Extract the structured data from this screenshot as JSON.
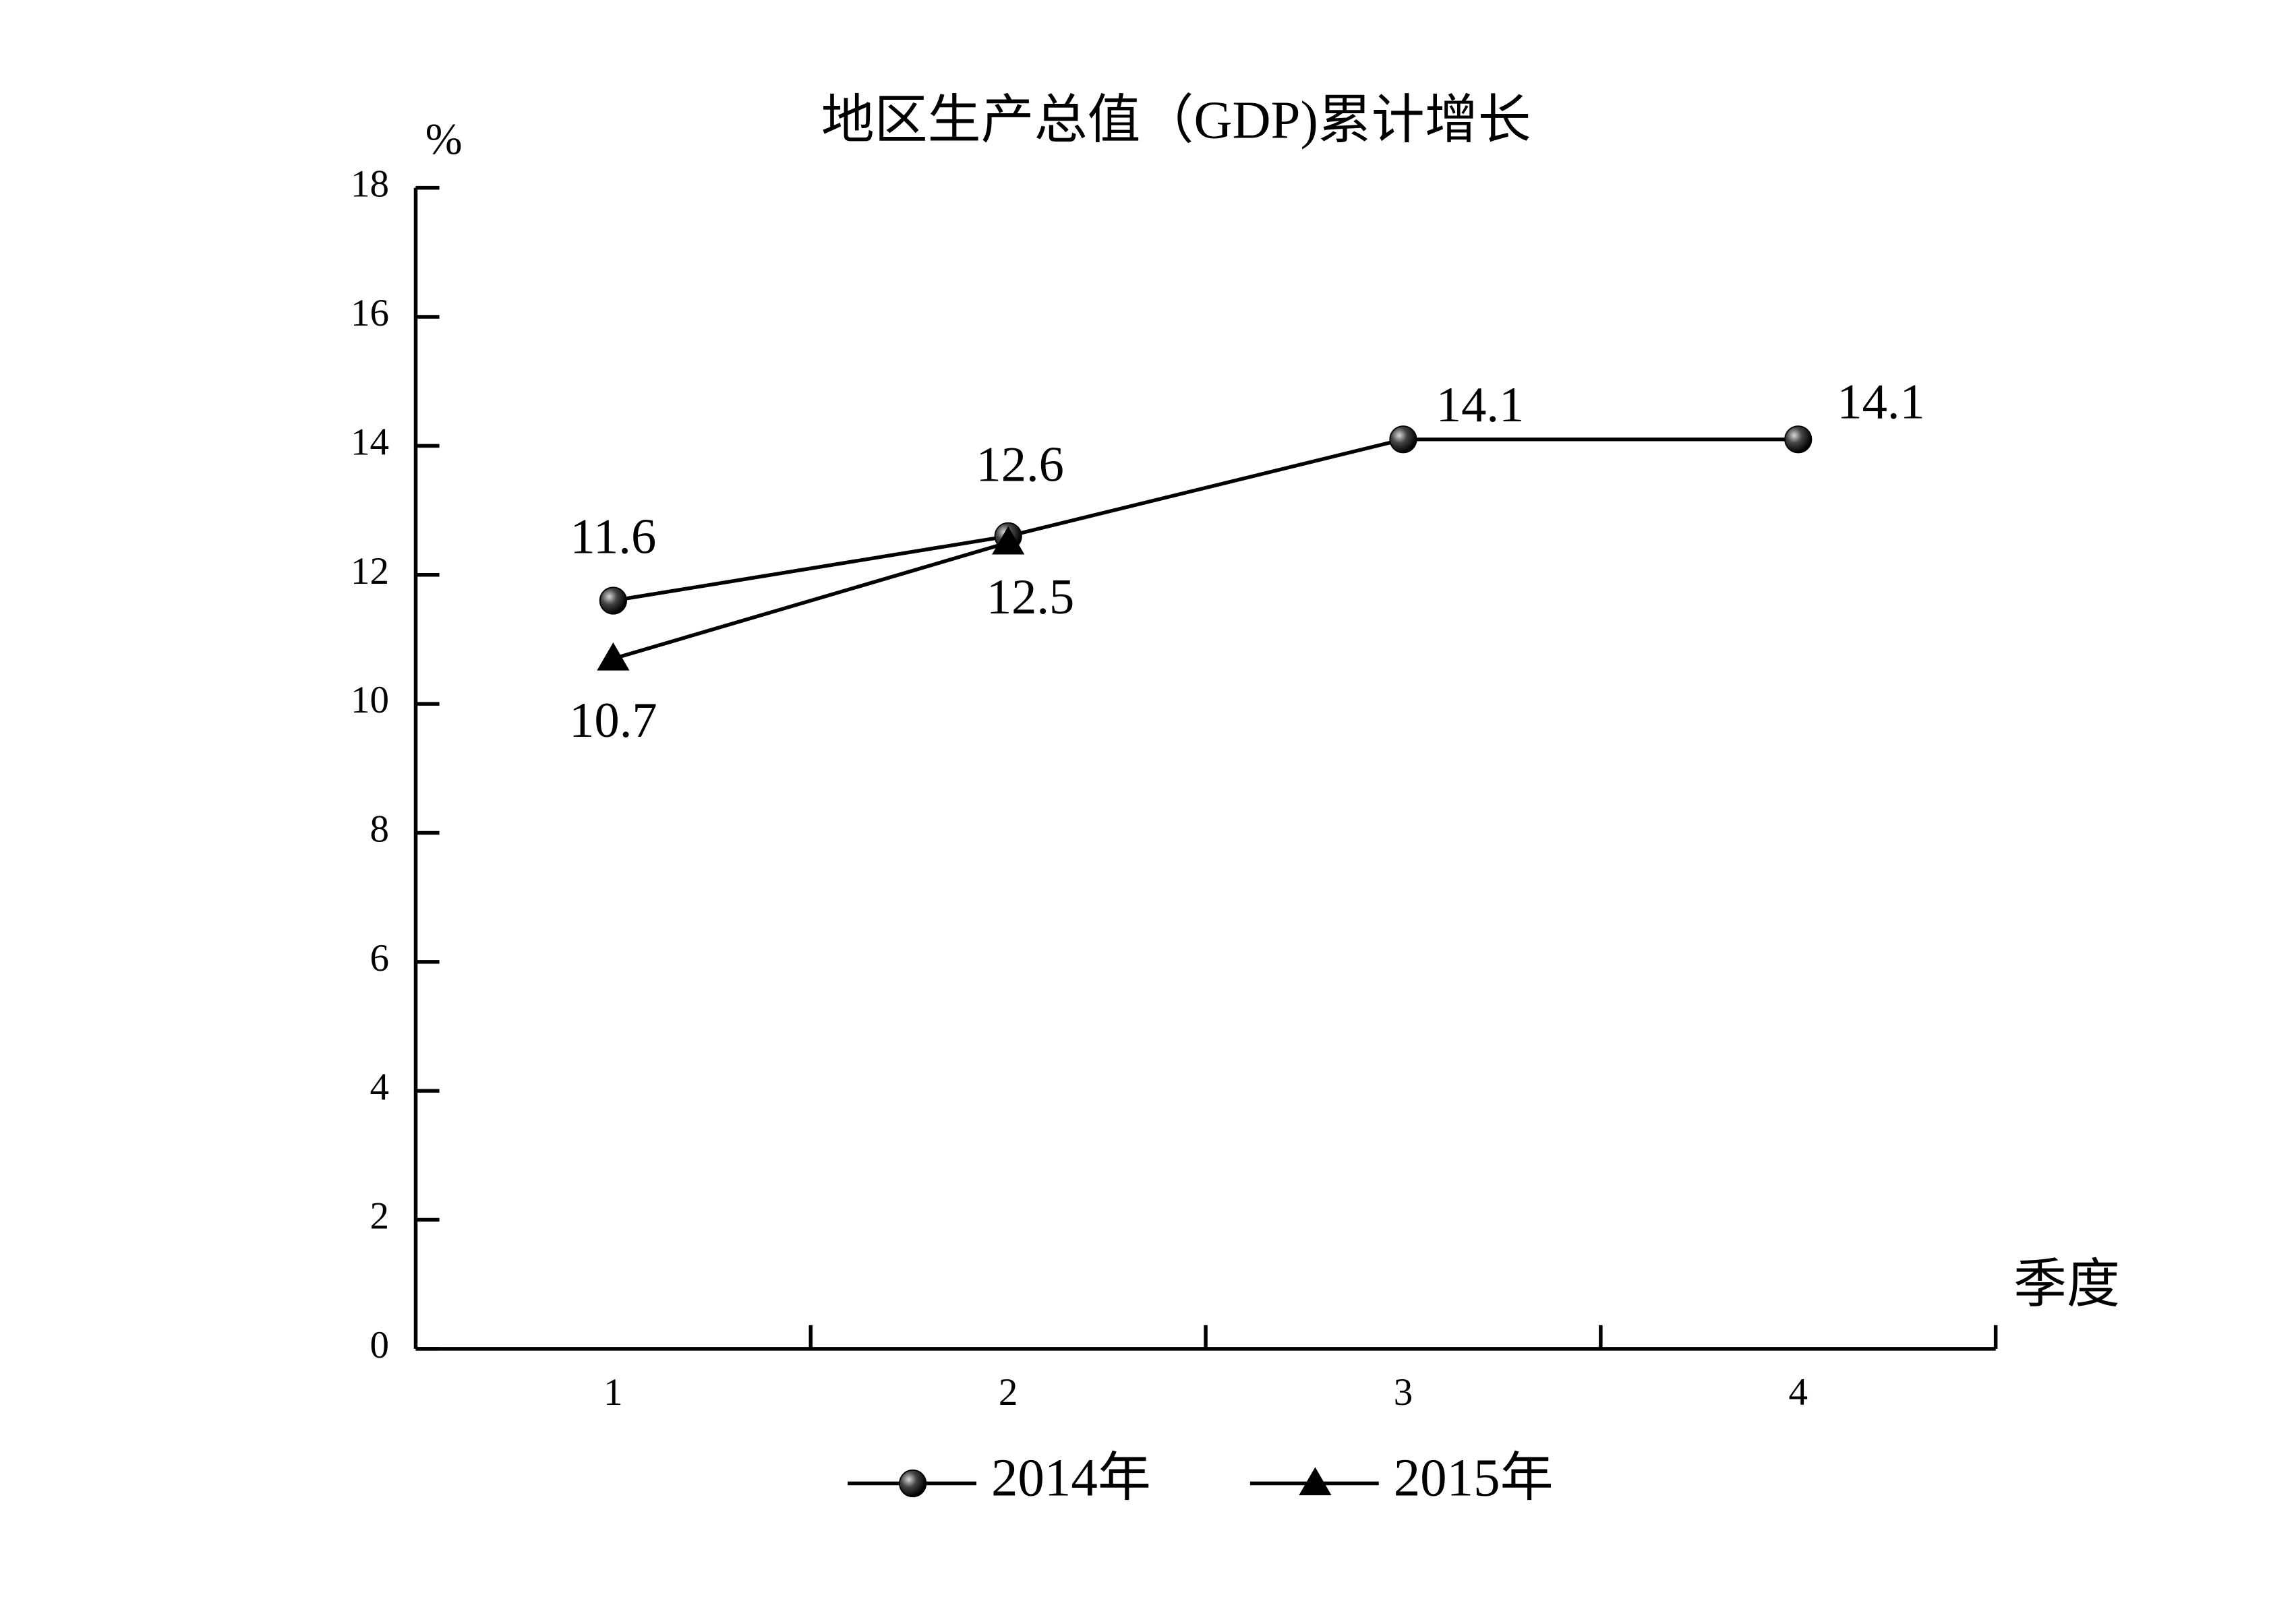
{
  "chart_data": {
    "type": "line",
    "title": "地区生产总值（GDP)累计增长",
    "y_label": "%",
    "x_label": "季度",
    "categories": [
      "1",
      "2",
      "3",
      "4"
    ],
    "series": [
      {
        "name": "2014年",
        "color": "#000000",
        "marker": "circle",
        "values": [
          11.6,
          12.6,
          14.1,
          14.1
        ]
      },
      {
        "name": "2015年",
        "color": "#000000",
        "marker": "triangle",
        "values": [
          10.7,
          12.5,
          null,
          null
        ]
      }
    ],
    "ylim": [
      0,
      18
    ],
    "yticks": [
      0,
      2,
      4,
      6,
      8,
      10,
      12,
      14,
      16,
      18
    ],
    "grid": false,
    "legend": "bottom"
  }
}
